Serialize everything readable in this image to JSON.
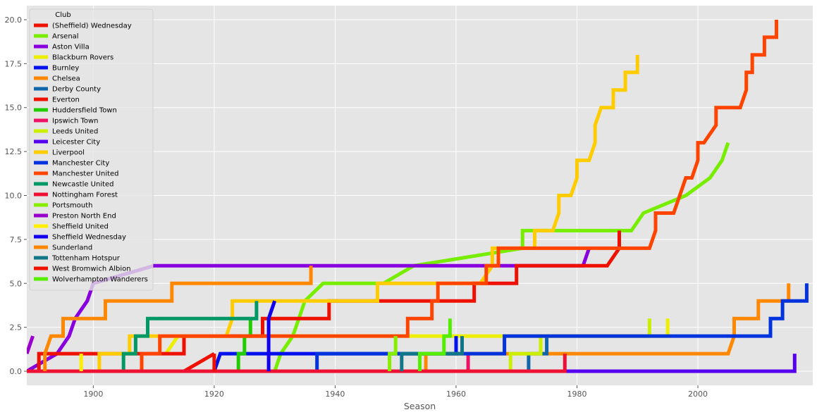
{
  "chart_data": {
    "type": "line",
    "title": "",
    "xlabel": "Season",
    "ylabel": "",
    "xlim": [
      1889,
      2019
    ],
    "ylim": [
      -0.8,
      20.8
    ],
    "xticks": [
      1900,
      1920,
      1940,
      1960,
      1980,
      2000
    ],
    "yticks": [
      "0.0",
      "2.5",
      "5.0",
      "7.5",
      "10.0",
      "12.5",
      "15.0",
      "17.5",
      "20.0"
    ],
    "grid": true,
    "legend": {
      "title": "Club",
      "placement": "upper-left"
    },
    "series": [
      {
        "name": "(Sheffield) Wednesday",
        "color": "#ee1100",
        "points": [
          [
            1915,
            0
          ],
          [
            1916,
            0.2
          ],
          [
            1917,
            0.4
          ],
          [
            1918,
            0.6
          ],
          [
            1919,
            0.8
          ],
          [
            1920,
            1
          ]
        ]
      },
      {
        "name": "Arsenal",
        "color": "#77ee00",
        "points": [
          [
            1930,
            0
          ],
          [
            1931,
            1
          ],
          [
            1933,
            2
          ],
          [
            1934,
            3
          ],
          [
            1935,
            4
          ],
          [
            1938,
            5
          ],
          [
            1948,
            5
          ],
          [
            1953,
            6
          ],
          [
            1971,
            7
          ],
          [
            1971,
            8
          ],
          [
            1989,
            8
          ],
          [
            1991,
            9
          ],
          [
            1998,
            10
          ],
          [
            2002,
            11
          ],
          [
            2004,
            12
          ],
          [
            2005,
            13
          ]
        ]
      },
      {
        "name": "Aston Villa",
        "color": "#8800dd",
        "points": [
          [
            1889,
            0
          ],
          [
            1894,
            1
          ],
          [
            1896,
            2
          ],
          [
            1897,
            3
          ],
          [
            1899,
            4
          ],
          [
            1900,
            5
          ],
          [
            1910,
            6
          ],
          [
            1981,
            6
          ],
          [
            1982,
            7
          ]
        ]
      },
      {
        "name": "Blackburn Rovers",
        "color": "#eeee00",
        "points": [
          [
            1912,
            1
          ],
          [
            1914,
            2
          ],
          [
            1995,
            2
          ],
          [
            1995,
            3
          ]
        ]
      },
      {
        "name": "Burnley",
        "color": "#0011ee",
        "points": [
          [
            1920,
            0
          ],
          [
            1921,
            1
          ],
          [
            1960,
            1
          ],
          [
            1960,
            2
          ]
        ]
      },
      {
        "name": "Chelsea",
        "color": "#ff8800",
        "points": [
          [
            1955,
            0
          ],
          [
            1955,
            1
          ],
          [
            2005,
            1
          ],
          [
            2006,
            2
          ],
          [
            2006,
            3
          ],
          [
            2010,
            3
          ],
          [
            2010,
            4
          ],
          [
            2015,
            4
          ],
          [
            2015,
            5
          ]
        ]
      },
      {
        "name": "Derby County",
        "color": "#1166aa",
        "points": [
          [
            1972,
            0
          ],
          [
            1972,
            1
          ],
          [
            1975,
            1
          ],
          [
            1975,
            2
          ]
        ]
      },
      {
        "name": "Everton",
        "color": "#ee1100",
        "points": [
          [
            1891,
            0
          ],
          [
            1891,
            1
          ],
          [
            1915,
            1
          ],
          [
            1915,
            2
          ],
          [
            1928,
            2
          ],
          [
            1928,
            3
          ],
          [
            1939,
            3
          ],
          [
            1939,
            4
          ],
          [
            1963,
            4
          ],
          [
            1963,
            5
          ],
          [
            1970,
            5
          ],
          [
            1970,
            6
          ],
          [
            1985,
            6
          ],
          [
            1987,
            7
          ],
          [
            1987,
            8
          ]
        ]
      },
      {
        "name": "Huddersfield Town",
        "color": "#22cc00",
        "points": [
          [
            1924,
            0
          ],
          [
            1924,
            1
          ],
          [
            1925,
            1
          ],
          [
            1925,
            2
          ],
          [
            1926,
            2
          ],
          [
            1926,
            3
          ]
        ]
      },
      {
        "name": "Ipswich Town",
        "color": "#ee1166",
        "points": [
          [
            1962,
            0
          ],
          [
            1962,
            1
          ]
        ]
      },
      {
        "name": "Leeds United",
        "color": "#ccee00",
        "points": [
          [
            1969,
            0
          ],
          [
            1969,
            1
          ],
          [
            1974,
            1
          ],
          [
            1974,
            2
          ],
          [
            1992,
            2
          ],
          [
            1992,
            3
          ]
        ]
      },
      {
        "name": "Leicester City",
        "color": "#5500ee",
        "points": [
          [
            1889,
            0
          ],
          [
            2016,
            0
          ],
          [
            2016,
            1
          ]
        ]
      },
      {
        "name": "Liverpool",
        "color": "#ffcc00",
        "points": [
          [
            1901,
            0
          ],
          [
            1901,
            1
          ],
          [
            1906,
            1
          ],
          [
            1906,
            2
          ],
          [
            1922,
            2
          ],
          [
            1923,
            3
          ],
          [
            1923,
            4
          ],
          [
            1947,
            4
          ],
          [
            1947,
            5
          ],
          [
            1964,
            5
          ],
          [
            1966,
            6
          ],
          [
            1966,
            7
          ],
          [
            1973,
            7
          ],
          [
            1973,
            8
          ],
          [
            1976,
            8
          ],
          [
            1977,
            9
          ],
          [
            1977,
            10
          ],
          [
            1979,
            10
          ],
          [
            1980,
            11
          ],
          [
            1980,
            12
          ],
          [
            1982,
            12
          ],
          [
            1983,
            13
          ],
          [
            1983,
            14
          ],
          [
            1984,
            15
          ],
          [
            1986,
            15
          ],
          [
            1986,
            16
          ],
          [
            1988,
            16
          ],
          [
            1988,
            17
          ],
          [
            1990,
            17
          ],
          [
            1990,
            18
          ]
        ]
      },
      {
        "name": "Manchester City",
        "color": "#0033dd",
        "points": [
          [
            1937,
            0
          ],
          [
            1937,
            1
          ],
          [
            1968,
            1
          ],
          [
            1968,
            2
          ],
          [
            2012,
            2
          ],
          [
            2012,
            3
          ],
          [
            2014,
            3
          ],
          [
            2014,
            4
          ],
          [
            2018,
            4
          ],
          [
            2018,
            5
          ]
        ]
      },
      {
        "name": "Manchester United",
        "color": "#ff4400",
        "points": [
          [
            1908,
            0
          ],
          [
            1908,
            1
          ],
          [
            1911,
            1
          ],
          [
            1911,
            2
          ],
          [
            1952,
            2
          ],
          [
            1952,
            3
          ],
          [
            1956,
            3
          ],
          [
            1956,
            4
          ],
          [
            1957,
            4
          ],
          [
            1957,
            5
          ],
          [
            1965,
            5
          ],
          [
            1965,
            6
          ],
          [
            1967,
            6
          ],
          [
            1967,
            7
          ],
          [
            1992,
            7
          ],
          [
            1993,
            8
          ],
          [
            1993,
            9
          ],
          [
            1996,
            9
          ],
          [
            1997,
            10
          ],
          [
            1998,
            11
          ],
          [
            1999,
            11
          ],
          [
            2000,
            12
          ],
          [
            2000,
            13
          ],
          [
            2001,
            13
          ],
          [
            2003,
            14
          ],
          [
            2003,
            15
          ],
          [
            2007,
            15
          ],
          [
            2008,
            16
          ],
          [
            2008,
            17
          ],
          [
            2009,
            17
          ],
          [
            2009,
            18
          ],
          [
            2011,
            18
          ],
          [
            2011,
            19
          ],
          [
            2013,
            19
          ],
          [
            2013,
            20
          ]
        ]
      },
      {
        "name": "Newcastle United",
        "color": "#009966",
        "points": [
          [
            1905,
            0
          ],
          [
            1905,
            1
          ],
          [
            1907,
            1
          ],
          [
            1907,
            2
          ],
          [
            1909,
            2
          ],
          [
            1909,
            3
          ],
          [
            1927,
            3
          ],
          [
            1927,
            4
          ]
        ]
      },
      {
        "name": "Nottingham Forest",
        "color": "#ee1133",
        "points": [
          [
            1889,
            0
          ],
          [
            1978,
            0
          ],
          [
            1978,
            1
          ]
        ]
      },
      {
        "name": "Portsmouth",
        "color": "#88ee00",
        "points": [
          [
            1949,
            0
          ],
          [
            1949,
            1
          ],
          [
            1950,
            1
          ],
          [
            1950,
            2
          ]
        ]
      },
      {
        "name": "Preston North End",
        "color": "#9900cc",
        "points": [
          [
            1889,
            1
          ],
          [
            1890,
            2
          ]
        ]
      },
      {
        "name": "Sheffield United",
        "color": "#ffee00",
        "points": [
          [
            1898,
            0
          ],
          [
            1898,
            1
          ]
        ]
      },
      {
        "name": "Sheffield Wednesday",
        "color": "#1100ee",
        "points": [
          [
            1929,
            0
          ],
          [
            1929,
            1
          ],
          [
            1929,
            3
          ],
          [
            1930,
            4
          ]
        ]
      },
      {
        "name": "Sunderland",
        "color": "#ff8800",
        "points": [
          [
            1892,
            0
          ],
          [
            1892,
            1
          ],
          [
            1893,
            2
          ],
          [
            1895,
            2
          ],
          [
            1895,
            3
          ],
          [
            1902,
            3
          ],
          [
            1902,
            4
          ],
          [
            1913,
            4
          ],
          [
            1913,
            5
          ],
          [
            1936,
            5
          ],
          [
            1936,
            6
          ]
        ]
      },
      {
        "name": "Tottenham Hotspur",
        "color": "#117788",
        "points": [
          [
            1951,
            0
          ],
          [
            1951,
            1
          ],
          [
            1961,
            1
          ],
          [
            1961,
            2
          ]
        ]
      },
      {
        "name": "West Bromwich Albion",
        "color": "#ee1100",
        "points": [
          [
            1920,
            0
          ],
          [
            1920,
            1
          ]
        ]
      },
      {
        "name": "Wolverhampton Wanderers",
        "color": "#55ee00",
        "points": [
          [
            1954,
            0
          ],
          [
            1954,
            1
          ],
          [
            1958,
            1
          ],
          [
            1958,
            2
          ],
          [
            1959,
            2
          ],
          [
            1959,
            3
          ]
        ]
      }
    ]
  }
}
